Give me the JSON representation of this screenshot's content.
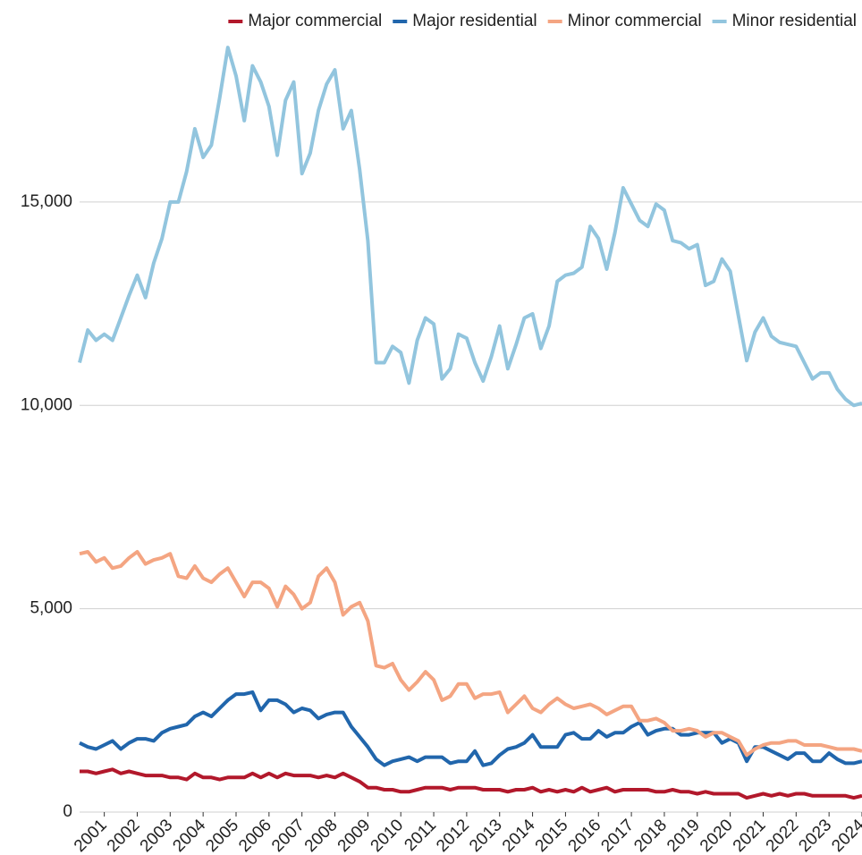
{
  "chart_data": {
    "type": "line",
    "x": [
      2000.25,
      2000.5,
      2000.75,
      2001,
      2001.25,
      2001.5,
      2001.75,
      2002,
      2002.25,
      2002.5,
      2002.75,
      2003,
      2003.25,
      2003.5,
      2003.75,
      2004,
      2004.25,
      2004.5,
      2004.75,
      2005,
      2005.25,
      2005.5,
      2005.75,
      2006,
      2006.25,
      2006.5,
      2006.75,
      2007,
      2007.25,
      2007.5,
      2007.75,
      2008,
      2008.25,
      2008.5,
      2008.75,
      2009,
      2009.25,
      2009.5,
      2009.75,
      2010,
      2010.25,
      2010.5,
      2010.75,
      2011,
      2011.25,
      2011.5,
      2011.75,
      2012,
      2012.25,
      2012.5,
      2012.75,
      2013,
      2013.25,
      2013.5,
      2013.75,
      2014,
      2014.25,
      2014.5,
      2014.75,
      2015,
      2015.25,
      2015.5,
      2015.75,
      2016,
      2016.25,
      2016.5,
      2016.75,
      2017,
      2017.25,
      2017.5,
      2017.75,
      2018,
      2018.25,
      2018.5,
      2018.75,
      2019,
      2019.25,
      2019.5,
      2019.75,
      2020,
      2020.25,
      2020.5,
      2020.75,
      2021,
      2021.25,
      2021.5,
      2021.75,
      2022,
      2022.25,
      2022.5,
      2022.75,
      2023,
      2023.25,
      2023.5,
      2023.75,
      2024
    ],
    "series": [
      {
        "name": "Major commercial",
        "color": "#b2182b",
        "values": [
          1000,
          1000,
          950,
          1000,
          1050,
          950,
          1000,
          950,
          900,
          900,
          900,
          850,
          850,
          800,
          950,
          850,
          850,
          800,
          850,
          850,
          850,
          950,
          850,
          950,
          850,
          950,
          900,
          900,
          900,
          850,
          900,
          850,
          950,
          850,
          750,
          600,
          600,
          550,
          550,
          500,
          500,
          550,
          600,
          600,
          600,
          550,
          600,
          600,
          600,
          550,
          550,
          550,
          500,
          550,
          550,
          600,
          500,
          550,
          500,
          550,
          500,
          600,
          500,
          550,
          600,
          500,
          550,
          550,
          550,
          550,
          500,
          500,
          550,
          500,
          500,
          450,
          500,
          450,
          450,
          450,
          450,
          350,
          400,
          450,
          400,
          450,
          400,
          450,
          450,
          400,
          400,
          400,
          400,
          400,
          350,
          400
        ]
      },
      {
        "name": "Major residential",
        "color": "#2166ac",
        "values": [
          1700,
          1600,
          1550,
          1650,
          1750,
          1550,
          1700,
          1800,
          1800,
          1750,
          1950,
          2050,
          2100,
          2150,
          2350,
          2450,
          2350,
          2550,
          2750,
          2900,
          2900,
          2950,
          2500,
          2750,
          2750,
          2650,
          2450,
          2550,
          2500,
          2300,
          2400,
          2450,
          2450,
          2100,
          1850,
          1600,
          1300,
          1150,
          1250,
          1300,
          1350,
          1250,
          1350,
          1350,
          1350,
          1200,
          1250,
          1250,
          1500,
          1150,
          1200,
          1400,
          1550,
          1600,
          1700,
          1900,
          1600,
          1600,
          1600,
          1900,
          1950,
          1800,
          1800,
          2000,
          1850,
          1950,
          1950,
          2100,
          2200,
          1900,
          2000,
          2050,
          2050,
          1900,
          1900,
          1950,
          1950,
          1950,
          1700,
          1800,
          1700,
          1250,
          1600,
          1600,
          1500,
          1400,
          1300,
          1450,
          1450,
          1250,
          1250,
          1450,
          1300,
          1200,
          1200,
          1250
        ]
      },
      {
        "name": "Minor commercial",
        "color": "#f4a582",
        "values": [
          6350,
          6400,
          6150,
          6250,
          6000,
          6050,
          6250,
          6400,
          6100,
          6200,
          6250,
          6350,
          5800,
          5750,
          6050,
          5750,
          5650,
          5850,
          6000,
          5650,
          5300,
          5650,
          5650,
          5500,
          5050,
          5550,
          5350,
          5000,
          5150,
          5800,
          6000,
          5650,
          4850,
          5050,
          5150,
          4700,
          3600,
          3550,
          3650,
          3250,
          3000,
          3200,
          3450,
          3250,
          2750,
          2850,
          3150,
          3150,
          2800,
          2900,
          2900,
          2950,
          2450,
          2650,
          2850,
          2550,
          2450,
          2650,
          2800,
          2650,
          2550,
          2600,
          2650,
          2550,
          2400,
          2500,
          2600,
          2600,
          2250,
          2250,
          2300,
          2200,
          2000,
          2000,
          2050,
          2000,
          1850,
          1950,
          1950,
          1850,
          1750,
          1400,
          1550,
          1650,
          1700,
          1700,
          1750,
          1750,
          1650,
          1650,
          1650,
          1600,
          1550,
          1550,
          1550,
          1500
        ]
      },
      {
        "name": "Minor residential",
        "color": "#92c5de",
        "values": [
          11050,
          11850,
          11600,
          11750,
          11600,
          12150,
          12700,
          13200,
          12650,
          13500,
          14100,
          15000,
          15000,
          15750,
          16800,
          16100,
          16400,
          17550,
          18800,
          18100,
          17000,
          18350,
          17950,
          17350,
          16150,
          17500,
          17950,
          15700,
          16200,
          17250,
          17900,
          18250,
          16800,
          17250,
          15800,
          14050,
          11050,
          11050,
          11450,
          11300,
          10550,
          11600,
          12150,
          12000,
          10650,
          10900,
          11750,
          11650,
          11050,
          10600,
          11200,
          11950,
          10900,
          11500,
          12150,
          12250,
          11400,
          11950,
          13050,
          13200,
          13250,
          13400,
          14400,
          14100,
          13350,
          14250,
          15350,
          14950,
          14550,
          14400,
          14950,
          14800,
          14050,
          14000,
          13850,
          13950,
          12950,
          13050,
          13600,
          13300,
          12200,
          11100,
          11800,
          12150,
          11700,
          11550,
          11500,
          11450,
          11050,
          10650,
          10800,
          10800,
          10400,
          10150,
          10000,
          10050
        ]
      }
    ],
    "xlim": [
      2000.25,
      2024
    ],
    "xticks": [
      2001,
      2002,
      2003,
      2004,
      2005,
      2006,
      2007,
      2008,
      2009,
      2010,
      2011,
      2012,
      2013,
      2014,
      2015,
      2016,
      2017,
      2018,
      2019,
      2020,
      2021,
      2022,
      2023,
      2024
    ],
    "ylim": [
      0,
      19000
    ],
    "yticks": [
      0,
      {
        "value": 5000,
        "label": "5,000"
      },
      {
        "value": 10000,
        "label": "10,000"
      },
      {
        "value": 15000,
        "label": "15,000"
      }
    ],
    "grid": true,
    "legend": "top"
  }
}
